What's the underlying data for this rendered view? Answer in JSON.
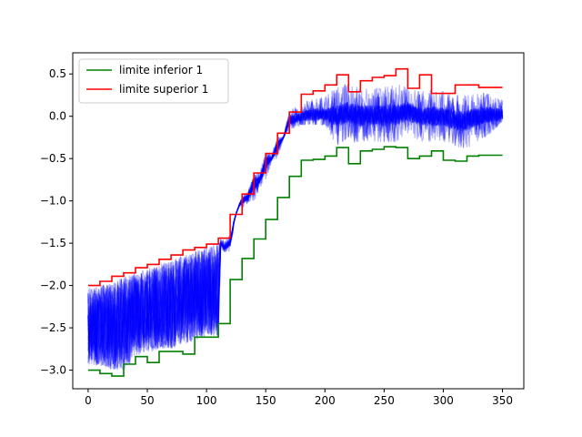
{
  "chart_data": {
    "type": "line",
    "title": "",
    "xlabel": "",
    "ylabel": "",
    "xlim": [
      -13,
      368
    ],
    "ylim": [
      -3.22,
      0.75
    ],
    "xticks": [
      0,
      50,
      100,
      150,
      200,
      250,
      300,
      350
    ],
    "yticks": [
      0.5,
      0.0,
      -0.5,
      -1.0,
      -1.5,
      -2.0,
      -2.5,
      -3.0
    ],
    "grid": false,
    "legend_position": "top-left",
    "series": [
      {
        "name": "limite inferior 1",
        "color": "#008000",
        "x": [
          0,
          10,
          10,
          20,
          20,
          30,
          30,
          40,
          40,
          50,
          50,
          60,
          60,
          70,
          70,
          80,
          80,
          90,
          90,
          100,
          100,
          110,
          110,
          120,
          120,
          130,
          130,
          140,
          140,
          150,
          150,
          160,
          160,
          170,
          170,
          180,
          180,
          190,
          190,
          200,
          200,
          210,
          210,
          220,
          220,
          230,
          230,
          240,
          240,
          250,
          250,
          260,
          260,
          270,
          270,
          280,
          280,
          290,
          290,
          300,
          300,
          310,
          310,
          320,
          320,
          330,
          330,
          340,
          340,
          350
        ],
        "y": [
          -3.0,
          -3.0,
          -3.04,
          -3.04,
          -3.07,
          -3.07,
          -2.93,
          -2.93,
          -2.84,
          -2.84,
          -2.91,
          -2.91,
          -2.78,
          -2.78,
          -2.78,
          -2.78,
          -2.81,
          -2.81,
          -2.61,
          -2.61,
          -2.61,
          -2.61,
          -2.45,
          -2.45,
          -1.93,
          -1.93,
          -1.68,
          -1.68,
          -1.45,
          -1.45,
          -1.22,
          -1.22,
          -0.96,
          -0.96,
          -0.71,
          -0.71,
          -0.52,
          -0.52,
          -0.51,
          -0.51,
          -0.47,
          -0.47,
          -0.37,
          -0.37,
          -0.56,
          -0.56,
          -0.41,
          -0.41,
          -0.39,
          -0.39,
          -0.36,
          -0.36,
          -0.37,
          -0.37,
          -0.5,
          -0.5,
          -0.47,
          -0.47,
          -0.41,
          -0.41,
          -0.52,
          -0.52,
          -0.53,
          -0.53,
          -0.47,
          -0.47,
          -0.46,
          -0.46,
          -0.46,
          -0.46
        ]
      },
      {
        "name": "limite superior 1",
        "color": "#ff0000",
        "x": [
          0,
          10,
          10,
          20,
          20,
          30,
          30,
          40,
          40,
          50,
          50,
          60,
          60,
          70,
          70,
          80,
          80,
          90,
          90,
          100,
          100,
          110,
          110,
          120,
          120,
          130,
          130,
          140,
          140,
          150,
          150,
          160,
          160,
          170,
          170,
          180,
          180,
          190,
          190,
          200,
          200,
          210,
          210,
          220,
          220,
          230,
          230,
          240,
          240,
          250,
          250,
          260,
          260,
          270,
          270,
          280,
          280,
          290,
          290,
          300,
          300,
          310,
          310,
          320,
          320,
          330,
          330,
          340,
          340,
          350
        ],
        "y": [
          -2.0,
          -2.0,
          -1.95,
          -1.95,
          -1.89,
          -1.89,
          -1.85,
          -1.85,
          -1.79,
          -1.79,
          -1.75,
          -1.75,
          -1.69,
          -1.69,
          -1.64,
          -1.64,
          -1.58,
          -1.58,
          -1.55,
          -1.55,
          -1.51,
          -1.51,
          -1.44,
          -1.44,
          -1.16,
          -1.16,
          -0.92,
          -0.92,
          -0.67,
          -0.67,
          -0.44,
          -0.44,
          -0.2,
          -0.2,
          0.05,
          0.05,
          0.26,
          0.26,
          0.3,
          0.3,
          0.37,
          0.37,
          0.49,
          0.49,
          0.29,
          0.29,
          0.42,
          0.42,
          0.46,
          0.46,
          0.48,
          0.48,
          0.56,
          0.56,
          0.33,
          0.33,
          0.49,
          0.49,
          0.27,
          0.27,
          0.27,
          0.27,
          0.37,
          0.37,
          0.37,
          0.37,
          0.34,
          0.34,
          0.34,
          0.34
        ]
      }
    ],
    "band": {
      "name": "",
      "color": "#0000ff",
      "description_of_values": "dense translucent blue traces between the limits",
      "x": [
        0,
        10,
        20,
        30,
        40,
        50,
        60,
        70,
        80,
        90,
        100,
        110,
        112,
        115,
        120,
        125,
        130,
        135,
        140,
        145,
        150,
        155,
        160,
        165,
        170,
        180,
        190,
        200,
        210,
        220,
        230,
        240,
        250,
        260,
        270,
        280,
        290,
        300,
        310,
        320,
        330,
        340,
        350
      ],
      "low": [
        -2.95,
        -2.95,
        -3.0,
        -3.0,
        -2.85,
        -2.8,
        -2.75,
        -2.75,
        -2.7,
        -2.65,
        -2.6,
        -2.6,
        -1.55,
        -1.6,
        -1.6,
        -1.15,
        -1.15,
        -1.05,
        -1.15,
        -0.85,
        -0.85,
        -0.55,
        -0.55,
        -0.3,
        -0.2,
        -0.1,
        -0.1,
        -0.1,
        -0.35,
        -0.25,
        -0.4,
        -0.3,
        -0.3,
        -0.3,
        -0.2,
        -0.3,
        -0.3,
        -0.3,
        -0.4,
        -0.45,
        -0.3,
        -0.2,
        -0.05
      ],
      "high": [
        -2.05,
        -2.0,
        -1.95,
        -1.9,
        -1.85,
        -1.8,
        -1.75,
        -1.7,
        -1.65,
        -1.6,
        -1.55,
        -1.5,
        -1.45,
        -1.45,
        -1.4,
        -1.15,
        -0.95,
        -0.9,
        -0.7,
        -0.65,
        -0.45,
        -0.45,
        -0.25,
        -0.25,
        0.05,
        0.2,
        0.3,
        0.3,
        0.35,
        0.45,
        0.3,
        0.35,
        0.4,
        0.4,
        0.45,
        0.3,
        0.35,
        0.3,
        0.25,
        0.25,
        0.3,
        0.3,
        0.3
      ],
      "mean": [
        -2.55,
        -2.5,
        -2.45,
        -2.4,
        -2.35,
        -2.3,
        -2.25,
        -2.2,
        -2.15,
        -2.1,
        -2.05,
        -2.0,
        -1.5,
        -1.55,
        -1.5,
        -1.1,
        -1.0,
        -0.95,
        -0.8,
        -0.75,
        -0.55,
        -0.5,
        -0.35,
        -0.25,
        -0.05,
        0.0,
        0.02,
        0.03,
        0.0,
        0.05,
        0.0,
        0.02,
        0.0,
        0.02,
        0.05,
        0.0,
        0.0,
        0.0,
        -0.05,
        -0.05,
        0.0,
        0.02,
        0.02
      ]
    }
  }
}
